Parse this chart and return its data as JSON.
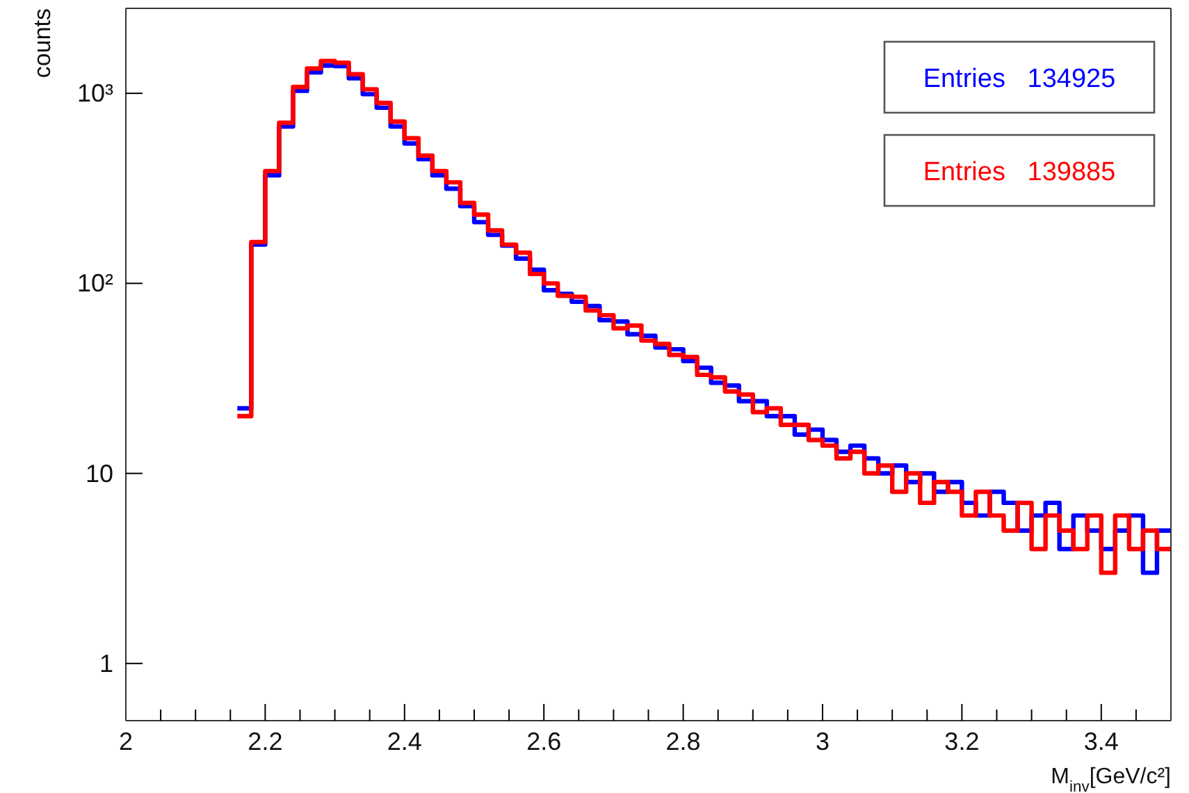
{
  "chart_data": {
    "type": "histogram",
    "xlabel": "M$_{inv}$[GeV/c²]",
    "ylabel": "counts",
    "log": true,
    "grid": false,
    "legend": "top right",
    "line_style": "solid",
    "bins": [
      2.16,
      2.18,
      2.2,
      2.22,
      2.24,
      2.26,
      2.28,
      2.3,
      2.32,
      2.34,
      2.36,
      2.38,
      2.4,
      2.42,
      2.44,
      2.46,
      2.48,
      2.5,
      2.52,
      2.54,
      2.56,
      2.58,
      2.6,
      2.62,
      2.64,
      2.66,
      2.68,
      2.7,
      2.72,
      2.74,
      2.76,
      2.78,
      2.8,
      2.82,
      2.84,
      2.86,
      2.88,
      2.9,
      2.92,
      2.94,
      2.96,
      2.98,
      3,
      3.02,
      3.04,
      3.06,
      3.08,
      3.1,
      3.12,
      3.14,
      3.16,
      3.18,
      3.2,
      3.22,
      3.24,
      3.26,
      3.28,
      3.3,
      3.32,
      3.34,
      3.36,
      3.38,
      3.4,
      3.42,
      3.44,
      3.46,
      3.48,
      3.5
    ],
    "xlim": [
      2,
      3.5
    ],
    "xticks": [
      2,
      {
        "value": 2.05,
        "label": null
      },
      {
        "value": 2.1,
        "label": null
      },
      {
        "value": 2.15,
        "label": null
      },
      2.2,
      {
        "value": 2.25,
        "label": null
      },
      {
        "value": 2.3,
        "label": null
      },
      {
        "value": 2.35,
        "label": null
      },
      2.4,
      {
        "value": 2.45,
        "label": null
      },
      {
        "value": 2.5,
        "label": null
      },
      {
        "value": 2.55,
        "label": null
      },
      2.6,
      {
        "value": 2.65,
        "label": null
      },
      {
        "value": 2.7,
        "label": null
      },
      {
        "value": 2.75,
        "label": null
      },
      2.8,
      {
        "value": 2.85,
        "label": null
      },
      {
        "value": 2.9,
        "label": null
      },
      {
        "value": 2.95,
        "label": null
      },
      3,
      {
        "value": 3.05,
        "label": null
      },
      {
        "value": 3.1,
        "label": null
      },
      {
        "value": 3.15,
        "label": null
      },
      3.2,
      {
        "value": 3.25,
        "label": null
      },
      {
        "value": 3.3,
        "label": null
      },
      {
        "value": 3.35,
        "label": null
      },
      3.4,
      {
        "value": 3.45,
        "label": null
      }
    ],
    "ylim": [
      0.5,
      2800
    ],
    "yticks": [
      1,
      10,
      {
        "value": 100,
        "label": "10²"
      },
      {
        "value": 1000,
        "label": "10³"
      }
    ],
    "series": [
      {
        "name": "Entries   134925",
        "color": "#0000ff",
        "values": [
          22,
          160,
          370,
          670,
          1030,
          1290,
          1400,
          1390,
          1200,
          990,
          840,
          670,
          545,
          450,
          370,
          315,
          255,
          210,
          180,
          158,
          135,
          118,
          92,
          88,
          80,
          76,
          64,
          63,
          54,
          53,
          46,
          45,
          39,
          36,
          30,
          29,
          24,
          24,
          20,
          20,
          16,
          17,
          15,
          13,
          14,
          12,
          10,
          11,
          9,
          10,
          8,
          9,
          7,
          6,
          8,
          7,
          5,
          6,
          7,
          4,
          6,
          5,
          4,
          5,
          6,
          3,
          5
        ]
      },
      {
        "name": "Entries   139885",
        "color": "#ff0000",
        "values": [
          20,
          165,
          390,
          700,
          1080,
          1350,
          1480,
          1450,
          1260,
          1050,
          890,
          710,
          580,
          470,
          390,
          340,
          265,
          230,
          190,
          160,
          145,
          112,
          100,
          86,
          85,
          72,
          68,
          58,
          60,
          50,
          48,
          42,
          41,
          33,
          32,
          27,
          26,
          21,
          22,
          18,
          18,
          15,
          14,
          12,
          13,
          10,
          11,
          8,
          10,
          7,
          9,
          8,
          6,
          8,
          6,
          5,
          7,
          4,
          6,
          5,
          4,
          6,
          3,
          6,
          4,
          5,
          4
        ]
      }
    ]
  }
}
